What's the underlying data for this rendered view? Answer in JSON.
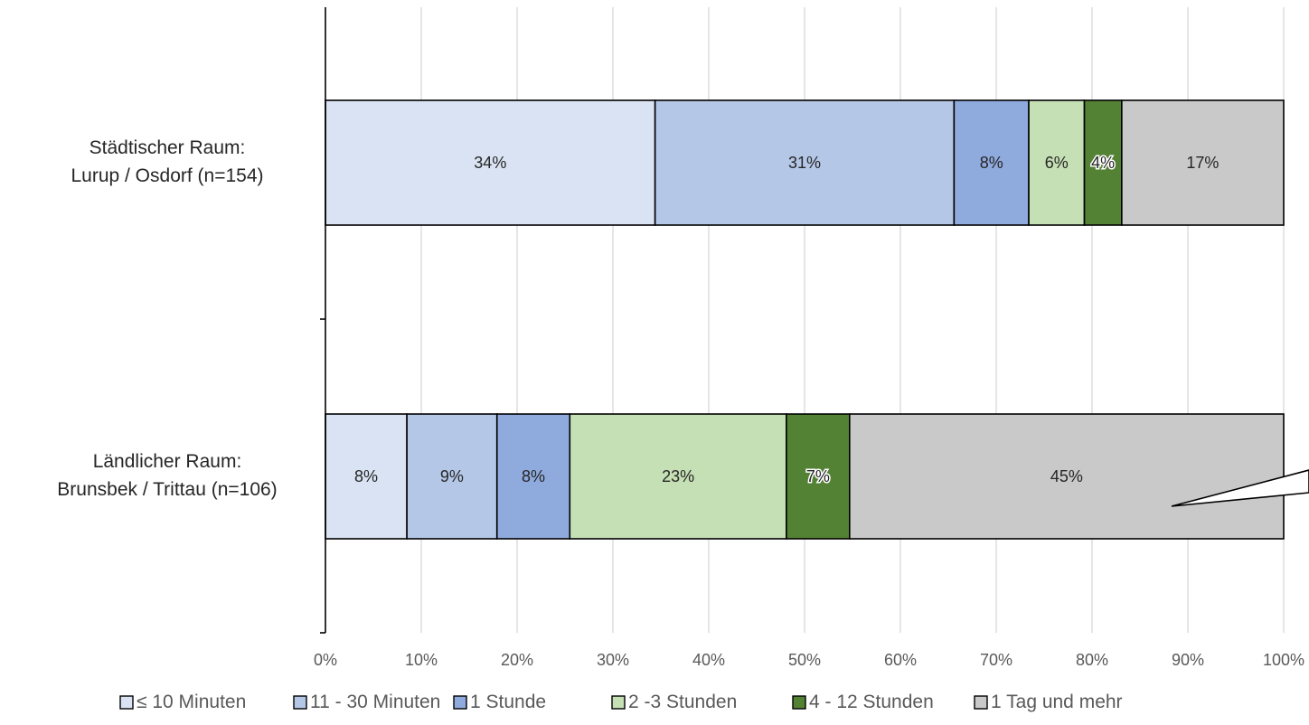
{
  "chart_data": {
    "type": "bar",
    "orientation": "horizontal",
    "stacked": "percent",
    "categories": [
      [
        "Städtischer Raum:",
        "Lurup / Osdorf (n=154)"
      ],
      [
        "Ländlicher Raum:",
        "Brunsbek / Trittau (n=106)"
      ]
    ],
    "series": [
      {
        "name": "≤ 10 Minuten",
        "color": "#dae3f3",
        "values": [
          34.4,
          8.5
        ],
        "labels": [
          "34%",
          "8%"
        ]
      },
      {
        "name": "11 - 30 Minuten",
        "color": "#b4c7e7",
        "values": [
          31.2,
          9.4
        ],
        "labels": [
          "31%",
          "9%"
        ]
      },
      {
        "name": "1 Stunde",
        "color": "#8faadc",
        "values": [
          7.8,
          7.6
        ],
        "labels": [
          "8%",
          "8%"
        ]
      },
      {
        "name": "2 -3 Stunden",
        "color": "#c5e0b4",
        "values": [
          5.8,
          22.6
        ],
        "labels": [
          "6%",
          "23%"
        ]
      },
      {
        "name": "4 - 12 Stunden",
        "color": "#548235",
        "values": [
          3.9,
          6.6
        ],
        "labels": [
          "4%",
          "7%"
        ]
      },
      {
        "name": "1 Tag und mehr",
        "color": "#c9c9c9",
        "values": [
          16.9,
          45.3
        ],
        "labels": [
          "17%",
          "45%"
        ]
      }
    ],
    "xlim": [
      0,
      100
    ],
    "xticks": [
      "0%",
      "10%",
      "20%",
      "30%",
      "40%",
      "50%",
      "60%",
      "70%",
      "80%",
      "90%",
      "100%"
    ],
    "grid": true,
    "legend_position": "bottom"
  }
}
